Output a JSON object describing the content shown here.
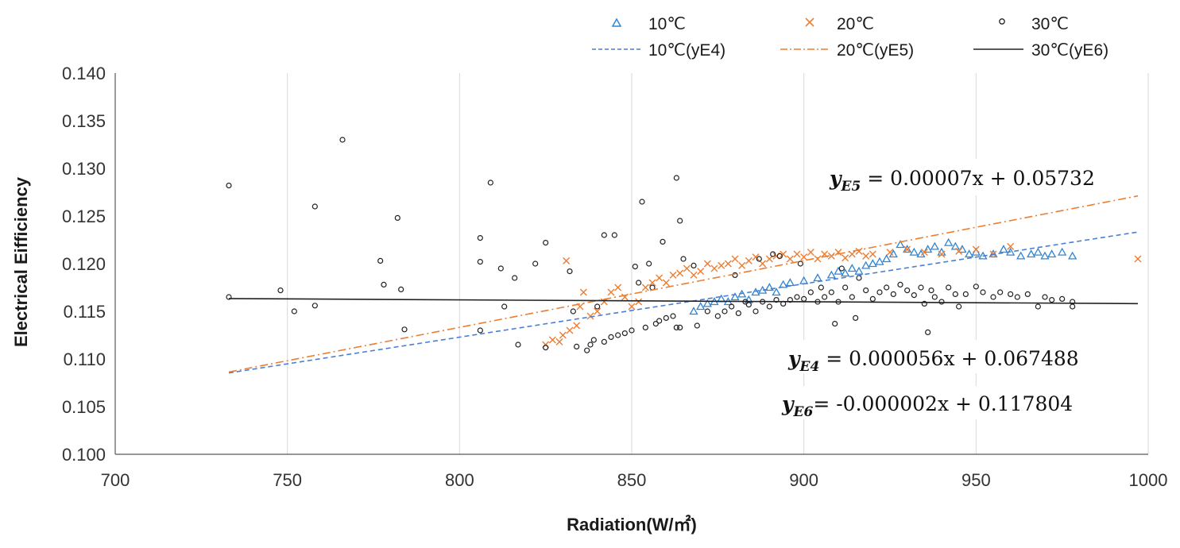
{
  "chart_data": {
    "type": "scatter",
    "xlabel": "Radiation(W/㎡)",
    "ylabel": "Electrical Eifficiency",
    "xlim": [
      700,
      1000
    ],
    "ylim": [
      0.1,
      0.14
    ],
    "x_ticks": [
      700,
      750,
      800,
      850,
      900,
      950,
      1000
    ],
    "y_ticks": [
      "0.100",
      "0.105",
      "0.110",
      "0.115",
      "0.120",
      "0.125",
      "0.130",
      "0.135",
      "0.140"
    ],
    "grid": "vertical",
    "legend_position": "top-right",
    "legend": {
      "s10": "10℃",
      "s20": "20℃",
      "s30": "30℃",
      "f10": "10℃(yE4)",
      "f20": "20℃(yE5)",
      "f30": "30℃(yE6)"
    },
    "series": [
      {
        "name": "10℃",
        "marker": "triangle",
        "color": "#2e86d4",
        "points": [
          [
            868,
            0.115
          ],
          [
            870,
            0.1155
          ],
          [
            872,
            0.1158
          ],
          [
            874,
            0.116
          ],
          [
            876,
            0.1163
          ],
          [
            878,
            0.116
          ],
          [
            880,
            0.1165
          ],
          [
            882,
            0.1168
          ],
          [
            884,
            0.1162
          ],
          [
            886,
            0.117
          ],
          [
            888,
            0.1172
          ],
          [
            890,
            0.1175
          ],
          [
            892,
            0.117
          ],
          [
            894,
            0.1178
          ],
          [
            896,
            0.118
          ],
          [
            900,
            0.1182
          ],
          [
            904,
            0.1185
          ],
          [
            908,
            0.1188
          ],
          [
            910,
            0.1192
          ],
          [
            912,
            0.119
          ],
          [
            914,
            0.1195
          ],
          [
            916,
            0.1192
          ],
          [
            918,
            0.1198
          ],
          [
            920,
            0.12
          ],
          [
            922,
            0.1202
          ],
          [
            924,
            0.1205
          ],
          [
            926,
            0.121
          ],
          [
            928,
            0.122
          ],
          [
            930,
            0.1215
          ],
          [
            932,
            0.1212
          ],
          [
            934,
            0.121
          ],
          [
            936,
            0.1215
          ],
          [
            938,
            0.1218
          ],
          [
            940,
            0.1212
          ],
          [
            942,
            0.1222
          ],
          [
            944,
            0.1218
          ],
          [
            946,
            0.1215
          ],
          [
            948,
            0.121
          ],
          [
            950,
            0.1212
          ],
          [
            952,
            0.1208
          ],
          [
            955,
            0.121
          ],
          [
            958,
            0.1215
          ],
          [
            960,
            0.1212
          ],
          [
            963,
            0.1208
          ],
          [
            966,
            0.121
          ],
          [
            968,
            0.1212
          ],
          [
            970,
            0.1208
          ],
          [
            972,
            0.121
          ],
          [
            975,
            0.1212
          ],
          [
            978,
            0.1208
          ]
        ]
      },
      {
        "name": "20℃",
        "marker": "x",
        "color": "#ed7d31",
        "points": [
          [
            825,
            0.1115
          ],
          [
            827,
            0.112
          ],
          [
            829,
            0.1118
          ],
          [
            830,
            0.1125
          ],
          [
            831,
            0.1203
          ],
          [
            832,
            0.113
          ],
          [
            834,
            0.1135
          ],
          [
            835,
            0.1155
          ],
          [
            836,
            0.117
          ],
          [
            838,
            0.1145
          ],
          [
            840,
            0.115
          ],
          [
            842,
            0.116
          ],
          [
            844,
            0.117
          ],
          [
            846,
            0.1175
          ],
          [
            848,
            0.1165
          ],
          [
            850,
            0.1155
          ],
          [
            852,
            0.116
          ],
          [
            854,
            0.1175
          ],
          [
            856,
            0.118
          ],
          [
            858,
            0.1185
          ],
          [
            860,
            0.118
          ],
          [
            862,
            0.1188
          ],
          [
            864,
            0.119
          ],
          [
            866,
            0.1195
          ],
          [
            868,
            0.1188
          ],
          [
            870,
            0.1192
          ],
          [
            872,
            0.12
          ],
          [
            874,
            0.1195
          ],
          [
            876,
            0.1198
          ],
          [
            878,
            0.12
          ],
          [
            880,
            0.1205
          ],
          [
            882,
            0.1198
          ],
          [
            884,
            0.1203
          ],
          [
            886,
            0.1207
          ],
          [
            888,
            0.12
          ],
          [
            890,
            0.1205
          ],
          [
            892,
            0.1208
          ],
          [
            894,
            0.121
          ],
          [
            896,
            0.1205
          ],
          [
            898,
            0.121
          ],
          [
            900,
            0.1207
          ],
          [
            902,
            0.1212
          ],
          [
            904,
            0.1205
          ],
          [
            906,
            0.121
          ],
          [
            908,
            0.1208
          ],
          [
            910,
            0.1212
          ],
          [
            912,
            0.1206
          ],
          [
            914,
            0.121
          ],
          [
            916,
            0.1213
          ],
          [
            918,
            0.1208
          ],
          [
            920,
            0.121
          ],
          [
            925,
            0.1212
          ],
          [
            930,
            0.1215
          ],
          [
            935,
            0.1212
          ],
          [
            940,
            0.121
          ],
          [
            945,
            0.1213
          ],
          [
            950,
            0.1215
          ],
          [
            955,
            0.121
          ],
          [
            960,
            0.1218
          ],
          [
            997,
            0.1205
          ]
        ]
      },
      {
        "name": "30℃",
        "marker": "circle",
        "color": "#222222",
        "points": [
          [
            733,
            0.1282
          ],
          [
            733,
            0.1165
          ],
          [
            748,
            0.1172
          ],
          [
            752,
            0.115
          ],
          [
            758,
            0.126
          ],
          [
            758,
            0.1156
          ],
          [
            766,
            0.133
          ],
          [
            777,
            0.1203
          ],
          [
            778,
            0.1178
          ],
          [
            782,
            0.1248
          ],
          [
            783,
            0.1173
          ],
          [
            784,
            0.1131
          ],
          [
            806,
            0.1227
          ],
          [
            806,
            0.1202
          ],
          [
            806,
            0.113
          ],
          [
            809,
            0.1285
          ],
          [
            812,
            0.1195
          ],
          [
            813,
            0.1155
          ],
          [
            816,
            0.1185
          ],
          [
            817,
            0.1115
          ],
          [
            822,
            0.12
          ],
          [
            825,
            0.1222
          ],
          [
            825,
            0.1112
          ],
          [
            832,
            0.1192
          ],
          [
            833,
            0.115
          ],
          [
            834,
            0.1113
          ],
          [
            837,
            0.1109
          ],
          [
            838,
            0.1115
          ],
          [
            839,
            0.112
          ],
          [
            840,
            0.1155
          ],
          [
            842,
            0.123
          ],
          [
            842,
            0.1118
          ],
          [
            844,
            0.1123
          ],
          [
            845,
            0.123
          ],
          [
            846,
            0.1125
          ],
          [
            848,
            0.1127
          ],
          [
            850,
            0.113
          ],
          [
            851,
            0.1197
          ],
          [
            852,
            0.118
          ],
          [
            853,
            0.1265
          ],
          [
            854,
            0.1133
          ],
          [
            855,
            0.12
          ],
          [
            856,
            0.1175
          ],
          [
            857,
            0.1137
          ],
          [
            858,
            0.114
          ],
          [
            859,
            0.1223
          ],
          [
            860,
            0.1143
          ],
          [
            862,
            0.1145
          ],
          [
            863,
            0.1133
          ],
          [
            863,
            0.129
          ],
          [
            864,
            0.1245
          ],
          [
            864,
            0.1133
          ],
          [
            865,
            0.1205
          ],
          [
            868,
            0.1198
          ],
          [
            869,
            0.1135
          ],
          [
            872,
            0.115
          ],
          [
            875,
            0.1145
          ],
          [
            877,
            0.115
          ],
          [
            879,
            0.1155
          ],
          [
            880,
            0.1188
          ],
          [
            881,
            0.1148
          ],
          [
            883,
            0.116
          ],
          [
            884,
            0.1157
          ],
          [
            886,
            0.115
          ],
          [
            887,
            0.1205
          ],
          [
            888,
            0.116
          ],
          [
            890,
            0.1155
          ],
          [
            891,
            0.121
          ],
          [
            892,
            0.1162
          ],
          [
            893,
            0.1208
          ],
          [
            894,
            0.1158
          ],
          [
            896,
            0.1162
          ],
          [
            898,
            0.1165
          ],
          [
            899,
            0.12
          ],
          [
            900,
            0.1163
          ],
          [
            902,
            0.117
          ],
          [
            904,
            0.116
          ],
          [
            905,
            0.1175
          ],
          [
            906,
            0.1165
          ],
          [
            908,
            0.117
          ],
          [
            909,
            0.1137
          ],
          [
            910,
            0.116
          ],
          [
            911,
            0.1195
          ],
          [
            912,
            0.1175
          ],
          [
            914,
            0.1165
          ],
          [
            915,
            0.1143
          ],
          [
            916,
            0.1185
          ],
          [
            918,
            0.1172
          ],
          [
            920,
            0.1163
          ],
          [
            922,
            0.117
          ],
          [
            924,
            0.1175
          ],
          [
            926,
            0.1168
          ],
          [
            928,
            0.1178
          ],
          [
            930,
            0.1172
          ],
          [
            932,
            0.1167
          ],
          [
            934,
            0.1175
          ],
          [
            935,
            0.1158
          ],
          [
            936,
            0.1128
          ],
          [
            937,
            0.1172
          ],
          [
            938,
            0.1165
          ],
          [
            940,
            0.116
          ],
          [
            942,
            0.1175
          ],
          [
            944,
            0.1168
          ],
          [
            945,
            0.1155
          ],
          [
            947,
            0.1168
          ],
          [
            950,
            0.1176
          ],
          [
            952,
            0.117
          ],
          [
            955,
            0.1165
          ],
          [
            957,
            0.117
          ],
          [
            960,
            0.1168
          ],
          [
            962,
            0.1165
          ],
          [
            965,
            0.1168
          ],
          [
            968,
            0.1155
          ],
          [
            970,
            0.1165
          ],
          [
            972,
            0.1162
          ],
          [
            975,
            0.1163
          ],
          [
            978,
            0.116
          ],
          [
            978,
            0.1155
          ]
        ]
      }
    ],
    "fits": [
      {
        "name": "10℃(yE4)",
        "style": "dashed",
        "color": "#4a7fd6",
        "slope": 5.6e-05,
        "intercept": 0.067488,
        "x_range": [
          733,
          997
        ]
      },
      {
        "name": "20℃(yE5)",
        "style": "dash-dot",
        "color": "#ed7d31",
        "slope": 7e-05,
        "intercept": 0.05732,
        "x_range": [
          733,
          997
        ]
      },
      {
        "name": "30℃(yE6)",
        "style": "solid",
        "color": "#222222",
        "slope": -2e-06,
        "intercept": 0.117804,
        "x_range": [
          733,
          997
        ]
      }
    ],
    "annotations": {
      "e5": {
        "label": "y",
        "sub": "E5",
        "rest": " = 0.00007x  +  0.05732"
      },
      "e4": {
        "label": "y",
        "sub": "E4",
        "rest": " = 0.000056x  +  0.067488"
      },
      "e6": {
        "label": "y",
        "sub": "E6",
        "rest": "= -0.000002x  +  0.117804"
      }
    }
  }
}
